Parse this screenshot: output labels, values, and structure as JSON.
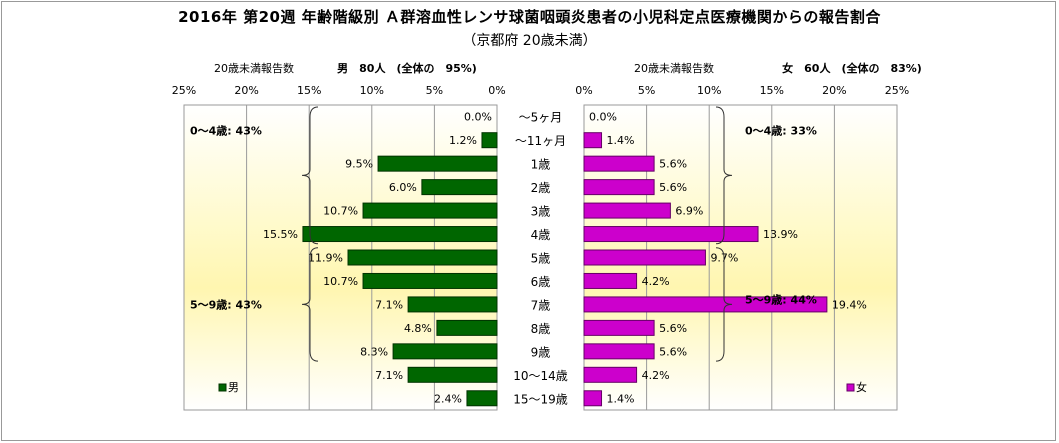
{
  "chart_data": {
    "type": "bar",
    "title": "2016年 第20週 年齢階級別 Ａ群溶血性レンサ球菌咽頭炎患者の小児科定点医療機関からの報告割合",
    "subtitle": "（京都府 20歳未満）",
    "categories": [
      "～5ヶ月",
      "～11ヶ月",
      "1歳",
      "2歳",
      "3歳",
      "4歳",
      "5歳",
      "6歳",
      "7歳",
      "8歳",
      "9歳",
      "10～14歳",
      "15～19歳"
    ],
    "xlim": [
      0,
      25
    ],
    "ticks": [
      "25%",
      "20%",
      "15%",
      "10%",
      "5%",
      "0%"
    ],
    "ticks_right": [
      "0%",
      "5%",
      "10%",
      "15%",
      "20%",
      "25%"
    ],
    "series": [
      {
        "name": "男",
        "header_left": "20歳未満報告数",
        "header_right": "男　80人　(全体の　95%)",
        "color": "#006600",
        "values": [
          0.0,
          1.2,
          9.5,
          6.0,
          10.7,
          15.5,
          11.9,
          10.7,
          7.1,
          4.8,
          8.3,
          7.1,
          2.4
        ],
        "value_labels": [
          "0.0%",
          "1.2%",
          "9.5%",
          "6.0%",
          "10.7%",
          "15.5%",
          "11.9%",
          "10.7%",
          "7.1%",
          "4.8%",
          "8.3%",
          "7.1%",
          "2.4%"
        ],
        "groups": [
          {
            "label": "0～4歳: 43%",
            "from": 0,
            "to": 5
          },
          {
            "label": "5～9歳: 43%",
            "from": 6,
            "to": 10
          }
        ]
      },
      {
        "name": "女",
        "header_left": "20歳未満報告数",
        "header_right": "女　60人　(全体の　83%)",
        "color": "#cc00cc",
        "values": [
          0.0,
          1.4,
          5.6,
          5.6,
          6.9,
          13.9,
          9.7,
          4.2,
          19.4,
          5.6,
          5.6,
          4.2,
          1.4
        ],
        "value_labels": [
          "0.0%",
          "1.4%",
          "5.6%",
          "5.6%",
          "6.9%",
          "13.9%",
          "9.7%",
          "4.2%",
          "19.4%",
          "5.6%",
          "5.6%",
          "4.2%",
          "1.4%"
        ],
        "groups": [
          {
            "label": "0～4歳: 33%",
            "from": 0,
            "to": 5
          },
          {
            "label": "5～9歳: 44%",
            "from": 6,
            "to": 10
          }
        ]
      }
    ]
  }
}
